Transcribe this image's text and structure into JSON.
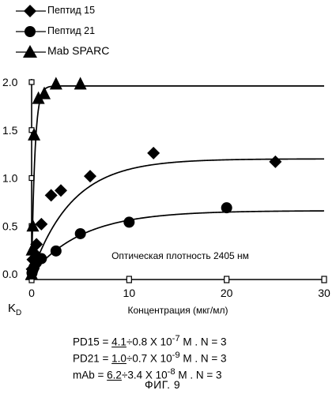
{
  "chart_data": {
    "type": "scatter",
    "xlabel": "Концентрация (мкг/мл)",
    "ylabel": "K_D",
    "xlim": [
      0,
      30
    ],
    "ylim": [
      0,
      2.0
    ],
    "x_ticks": [
      0,
      10,
      20,
      30
    ],
    "y_ticks": [
      0.0,
      0.5,
      1.0,
      1.5,
      2.0
    ],
    "x_tick_labels": [
      "0",
      "10",
      "20",
      "30"
    ],
    "y_tick_labels": [
      "0.0",
      "0.5",
      "1.0",
      "1.5",
      "2.0"
    ],
    "annotation": "Оптическая плотность 2405 нм",
    "legend_position": "top-left",
    "series": [
      {
        "name": "Пептид 15",
        "marker": "diamond",
        "points": [
          [
            0.04,
            0.05
          ],
          [
            0.12,
            0.15
          ],
          [
            0.25,
            0.22
          ],
          [
            0.5,
            0.31
          ],
          [
            1.0,
            0.52
          ],
          [
            2.0,
            0.82
          ],
          [
            3.0,
            0.87
          ],
          [
            6.0,
            1.02
          ],
          [
            12.5,
            1.26
          ],
          [
            25.0,
            1.17
          ]
        ],
        "fit": {
          "ymax": 1.2,
          "k": 0.24
        }
      },
      {
        "name": "Пептид 21",
        "marker": "circle",
        "points": [
          [
            0.04,
            0.01
          ],
          [
            0.12,
            0.04
          ],
          [
            0.25,
            0.07
          ],
          [
            0.5,
            0.12
          ],
          [
            1.0,
            0.16
          ],
          [
            2.5,
            0.24
          ],
          [
            5.0,
            0.42
          ],
          [
            10.0,
            0.54
          ],
          [
            20.0,
            0.69
          ]
        ],
        "fit": {
          "ymax": 0.66,
          "k": 0.19
        }
      },
      {
        "name": "Mab SPARC",
        "marker": "triangle",
        "points": [
          [
            0.0,
            0.0
          ],
          [
            0.04,
            0.25
          ],
          [
            0.12,
            0.5
          ],
          [
            0.25,
            1.45
          ],
          [
            0.7,
            1.83
          ],
          [
            1.3,
            1.88
          ],
          [
            2.5,
            1.98
          ],
          [
            5.0,
            1.98
          ]
        ],
        "fit": {
          "ymax": 1.96,
          "k": 3.0
        }
      }
    ]
  },
  "results": {
    "line1": {
      "pre": "PD15 = ",
      "val": "4.1",
      "post": "÷0.8 X 10",
      "exp": "-7",
      "tail": " M . N = 3"
    },
    "line2": {
      "pre": "PD21 = ",
      "val": "1.0",
      "post": "÷0.7 X 10",
      "exp": "-9",
      "tail": " M . N = 3"
    },
    "line3": {
      "pre": "mAb  = ",
      "val": "6.2",
      "post": "÷3.4 X 10",
      "exp": "-8",
      "tail": " M . N = 3"
    }
  },
  "kd_label": {
    "main": "K",
    "sub": "D"
  },
  "figure_caption": "ФИГ. 9"
}
